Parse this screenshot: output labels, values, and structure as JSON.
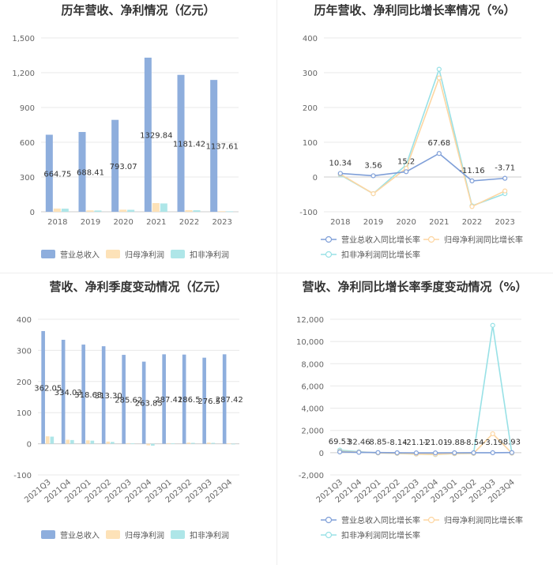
{
  "colors": {
    "revenue": "#8eaedd",
    "net_profit": "#fde2b8",
    "deducted_profit": "#aee6e8",
    "revenue_line": "#7f9fd8",
    "net_line": "#fdd6a2",
    "deducted_line": "#98e1e6",
    "grid": "#e8e8e8",
    "axis_text": "#666666",
    "title": "#333333"
  },
  "chart_data": [
    {
      "type": "bar",
      "title": "历年营收、净利情况（亿元）",
      "categories": [
        "2018",
        "2019",
        "2020",
        "2021",
        "2022",
        "2023"
      ],
      "ylim": [
        0,
        1500
      ],
      "yticks": [
        0,
        300,
        600,
        900,
        1200,
        1500
      ],
      "ytick_labels": [
        "0",
        "300",
        "600",
        "900",
        "1,200",
        "1,500"
      ],
      "series": [
        {
          "name": "营业总收入",
          "values": [
            664.75,
            688.41,
            793.07,
            1329.84,
            1181.42,
            1137.61
          ],
          "labels": [
            "664.75",
            "688.41",
            "793.07",
            "1329.84",
            "1181.42",
            "1137.61"
          ]
        },
        {
          "name": "归母净利润",
          "values": [
            28,
            12,
            18,
            75,
            14,
            5
          ]
        },
        {
          "name": "扣非净利润",
          "values": [
            27,
            11,
            17,
            72,
            13,
            4
          ]
        }
      ],
      "legend_position": "bottom"
    },
    {
      "type": "line",
      "title": "历年营收、净利同比增长率情况（%）",
      "categories": [
        "2018",
        "2019",
        "2020",
        "2021",
        "2022",
        "2023"
      ],
      "ylim": [
        -100,
        400
      ],
      "yticks": [
        -100,
        0,
        100,
        200,
        300,
        400
      ],
      "ytick_labels": [
        "-100",
        "0",
        "100",
        "200",
        "300",
        "400"
      ],
      "series": [
        {
          "name": "营业总收入同比增长率",
          "values": [
            10.34,
            3.56,
            15.2,
            67.68,
            -11.16,
            -3.71
          ],
          "labels": [
            "10.34",
            "3.56",
            "15.2",
            "67.68",
            "-11.16",
            "-3.71"
          ]
        },
        {
          "name": "归母净利润同比增长率",
          "values": [
            8,
            -48,
            25,
            285,
            -85,
            -40
          ]
        },
        {
          "name": "扣非净利润同比增长率",
          "values": [
            6,
            -48,
            35,
            310,
            -83,
            -48
          ]
        }
      ],
      "legend_position": "bottom"
    },
    {
      "type": "bar",
      "title": "营收、净利季度变动情况（亿元）",
      "categories": [
        "2021Q3",
        "2021Q4",
        "2022Q1",
        "2022Q2",
        "2022Q3",
        "2022Q4",
        "2023Q1",
        "2023Q2",
        "2023Q3",
        "2023Q4"
      ],
      "ylim": [
        -100,
        400
      ],
      "yticks": [
        -100,
        0,
        100,
        200,
        300,
        400
      ],
      "ytick_labels": [
        "-100",
        "0",
        "100",
        "200",
        "300",
        "400"
      ],
      "series": [
        {
          "name": "营业总收入",
          "values": [
            362.05,
            334.03,
            318.63,
            313.3,
            285.62,
            263.85,
            287.41,
            286.5,
            276.5,
            287.42
          ],
          "labels": [
            "362.05",
            "334.03",
            "318.63",
            "313.30",
            "285.62",
            "263.85",
            "287.41",
            "286.5",
            "276.5",
            "287.42"
          ]
        },
        {
          "name": "归母净利润",
          "values": [
            24,
            13,
            11,
            7,
            2,
            -5,
            2,
            4,
            4,
            1
          ]
        },
        {
          "name": "扣非净利润",
          "values": [
            23,
            12,
            10,
            6,
            1,
            -6,
            1,
            3,
            3,
            -1
          ]
        }
      ],
      "legend_position": "bottom"
    },
    {
      "type": "line",
      "title": "营收、净利同比增长率季度变动情况（%）",
      "categories": [
        "2021Q3",
        "2021Q4",
        "2022Q1",
        "2022Q2",
        "2022Q3",
        "2022Q4",
        "2023Q1",
        "2023Q2",
        "2023Q3",
        "2023Q4"
      ],
      "ylim": [
        -2000,
        12000
      ],
      "yticks": [
        -2000,
        0,
        2000,
        4000,
        6000,
        8000,
        10000,
        12000
      ],
      "ytick_labels": [
        "-2,000",
        "0",
        "2,000",
        "4,000",
        "6,000",
        "8,000",
        "10,000",
        "12,000"
      ],
      "series": [
        {
          "name": "营业总收入同比增长率",
          "values": [
            69.53,
            32.46,
            8.85,
            -8.14,
            -21.11,
            -21.01,
            -9.88,
            -8.54,
            -3.19,
            8.93
          ],
          "labels": [
            "69.53",
            "32.46",
            "8.85",
            "-8.14",
            "-21.11",
            "-21.01",
            "-9.88",
            "-8.54",
            "-3.19",
            "8.93"
          ]
        },
        {
          "name": "归母净利润同比增长率",
          "values": [
            120,
            60,
            -20,
            -60,
            -120,
            -150,
            -80,
            -60,
            1700,
            -40
          ]
        },
        {
          "name": "扣非净利润同比增长率",
          "values": [
            230,
            80,
            -20,
            -70,
            -130,
            -170,
            -90,
            -70,
            11450,
            -50
          ]
        }
      ],
      "legend_position": "bottom"
    }
  ]
}
